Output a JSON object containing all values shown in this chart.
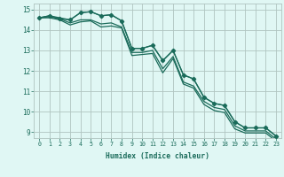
{
  "xlabel": "Humidex (Indice chaleur)",
  "background_color": "#e0f7f4",
  "grid_color": "#b0c4c0",
  "line_color": "#1a6b5a",
  "xlim": [
    -0.5,
    23.5
  ],
  "ylim": [
    8.7,
    15.3
  ],
  "yticks": [
    9,
    10,
    11,
    12,
    13,
    14,
    15
  ],
  "xticks": [
    0,
    1,
    2,
    3,
    4,
    5,
    6,
    7,
    8,
    9,
    10,
    11,
    12,
    13,
    14,
    15,
    16,
    17,
    18,
    19,
    20,
    21,
    22,
    23
  ],
  "line1_x": [
    0,
    1,
    2,
    3,
    4,
    5,
    6,
    7,
    8,
    9,
    10,
    11,
    12,
    13,
    14,
    15,
    16,
    17,
    18,
    19,
    20,
    21,
    22,
    23
  ],
  "line1_y": [
    14.6,
    14.7,
    14.6,
    14.5,
    14.85,
    14.9,
    14.7,
    14.75,
    14.45,
    13.1,
    13.1,
    13.25,
    12.5,
    13.0,
    11.8,
    11.6,
    10.7,
    10.4,
    10.3,
    9.5,
    9.2,
    9.2,
    9.2,
    8.8
  ],
  "line2_x": [
    0,
    1,
    2,
    3,
    4,
    5,
    6,
    7,
    8,
    9,
    10,
    11,
    12,
    13,
    14,
    15,
    16,
    17,
    18,
    19,
    20,
    21,
    22,
    23
  ],
  "line2_y": [
    14.6,
    14.65,
    14.55,
    14.35,
    14.5,
    14.5,
    14.3,
    14.35,
    14.15,
    12.9,
    12.9,
    13.0,
    12.1,
    12.7,
    11.45,
    11.25,
    10.5,
    10.2,
    10.1,
    9.3,
    9.05,
    9.05,
    9.05,
    8.65
  ],
  "line3_x": [
    0,
    1,
    2,
    3,
    4,
    5,
    6,
    7,
    8,
    9,
    10,
    11,
    12,
    13,
    14,
    15,
    16,
    17,
    18,
    19,
    20,
    21,
    22,
    23
  ],
  "line3_y": [
    14.6,
    14.6,
    14.5,
    14.25,
    14.4,
    14.45,
    14.15,
    14.2,
    14.1,
    12.75,
    12.8,
    12.85,
    11.9,
    12.6,
    11.35,
    11.15,
    10.35,
    10.05,
    9.95,
    9.15,
    8.95,
    8.95,
    8.95,
    8.55
  ],
  "line4_x": [
    0,
    1,
    2,
    3,
    4,
    5,
    6,
    7,
    8,
    9,
    10,
    11,
    12,
    13,
    14,
    15,
    16,
    17,
    18,
    19,
    20,
    21,
    22,
    23
  ],
  "line4_y": [
    14.6,
    14.7,
    14.55,
    14.5,
    14.85,
    14.9,
    14.7,
    14.75,
    14.45,
    13.1,
    13.1,
    13.25,
    12.5,
    13.0,
    11.8,
    11.6,
    10.7,
    10.4,
    10.3,
    9.5,
    9.2,
    9.2,
    9.2,
    8.8
  ]
}
